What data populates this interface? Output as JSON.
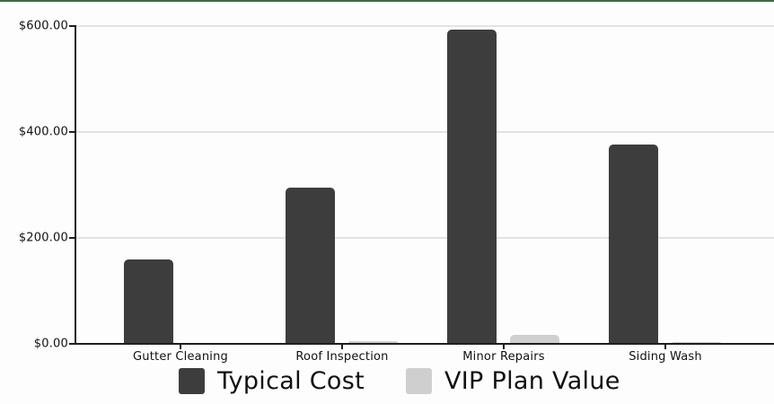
{
  "chart_data": {
    "type": "bar",
    "title": "",
    "xlabel": "",
    "ylabel": "",
    "categories": [
      "Gutter Cleaning",
      "Roof Inspection",
      "Minor Repairs",
      "Siding Wash"
    ],
    "series": [
      {
        "name": "Typical Cost",
        "color": "#3d3d3d",
        "values": [
          160,
          295,
          593,
          377
        ]
      },
      {
        "name": "VIP Plan Value",
        "color": "#cfcfcf",
        "values": [
          2,
          5,
          17,
          4
        ]
      }
    ],
    "ylim": [
      0,
      600
    ],
    "yticks": [
      0,
      200,
      400,
      600
    ],
    "ytick_labels": [
      "$0.00",
      "$200.00",
      "$400.00",
      "$600.00"
    ],
    "grid": true,
    "legend_position": "bottom"
  },
  "legend": {
    "items": [
      {
        "label": "Typical Cost",
        "color": "#3d3d3d"
      },
      {
        "label": "VIP Plan Value",
        "color": "#cfcfcf"
      }
    ]
  }
}
